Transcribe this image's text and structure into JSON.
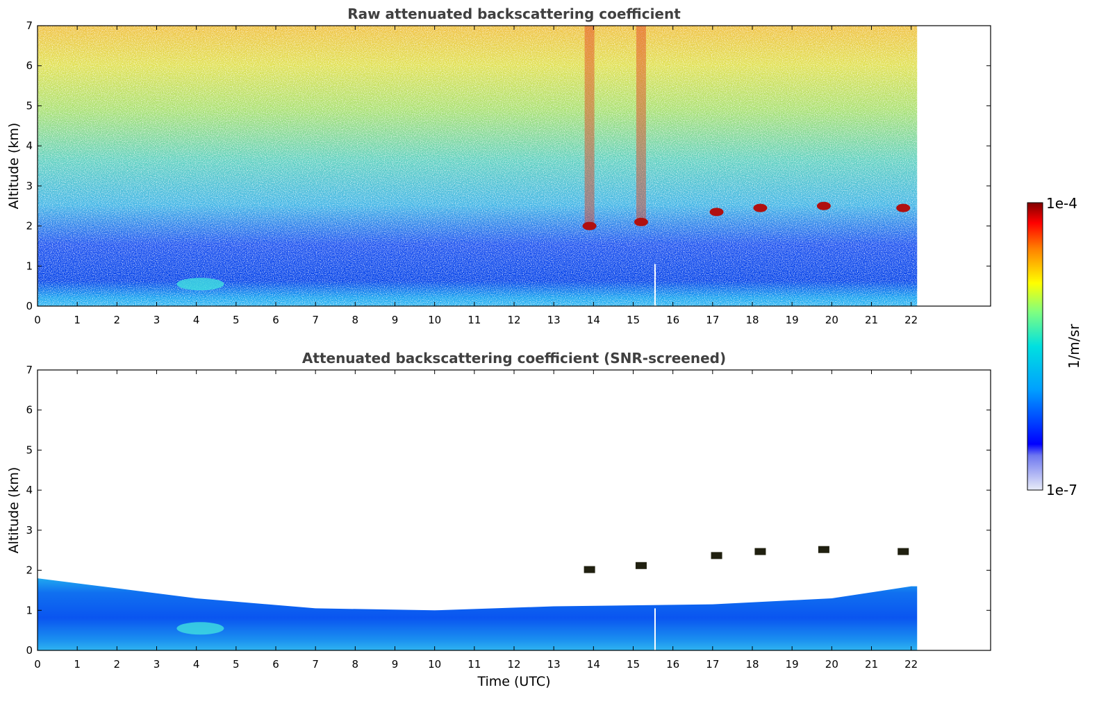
{
  "chart_data": [
    {
      "type": "heatmap",
      "title": "Raw attenuated backscattering coefficient",
      "xlabel": "",
      "ylabel": "Altitude (km)",
      "xlim": [
        0,
        24
      ],
      "ylim": [
        0,
        7
      ],
      "xticks": [
        "0",
        "1",
        "2",
        "3",
        "4",
        "5",
        "6",
        "7",
        "8",
        "9",
        "10",
        "11",
        "12",
        "13",
        "14",
        "15",
        "16",
        "17",
        "18",
        "19",
        "20",
        "21",
        "22"
      ],
      "yticks": [
        "0",
        "1",
        "2",
        "3",
        "4",
        "5",
        "6",
        "7"
      ],
      "data_extent_time": [
        0,
        22.15
      ],
      "screened": false,
      "features": {
        "boundary_layer_top_km": 1.0,
        "cloud_layer_altitudes_km": [
          {
            "time": 13.9,
            "altitude": 2.0
          },
          {
            "time": 15.2,
            "altitude": 2.1
          },
          {
            "time": 17.1,
            "altitude": 2.35
          },
          {
            "time": 18.2,
            "altitude": 2.45
          },
          {
            "time": 19.8,
            "altitude": 2.5
          },
          {
            "time": 21.8,
            "altitude": 2.45
          }
        ],
        "precipitation_streak_times": [
          13.9,
          15.2
        ]
      }
    },
    {
      "type": "heatmap",
      "title": "Attenuated backscattering coefficient (SNR-screened)",
      "xlabel": "Time (UTC)",
      "ylabel": "Altitude (km)",
      "xlim": [
        0,
        24
      ],
      "ylim": [
        0,
        7
      ],
      "xticks": [
        "0",
        "1",
        "2",
        "3",
        "4",
        "5",
        "6",
        "7",
        "8",
        "9",
        "10",
        "11",
        "12",
        "13",
        "14",
        "15",
        "16",
        "17",
        "18",
        "19",
        "20",
        "21",
        "22"
      ],
      "yticks": [
        "0",
        "1",
        "2",
        "3",
        "4",
        "5",
        "6",
        "7"
      ],
      "data_extent_time": [
        0,
        22.15
      ],
      "screened": true,
      "features": {
        "boundary_layer_top_km": [
          {
            "time": 0,
            "altitude": 1.8
          },
          {
            "time": 2,
            "altitude": 1.55
          },
          {
            "time": 4,
            "altitude": 1.3
          },
          {
            "time": 7,
            "altitude": 1.05
          },
          {
            "time": 10,
            "altitude": 1.0
          },
          {
            "time": 13,
            "altitude": 1.1
          },
          {
            "time": 17,
            "altitude": 1.15
          },
          {
            "time": 20,
            "altitude": 1.3
          },
          {
            "time": 22,
            "altitude": 1.6
          }
        ]
      }
    }
  ],
  "colorbar": {
    "max_label": "1e-4",
    "min_label": "1e-7",
    "unit_label": "1/m/sr",
    "colormap": "jet",
    "colors": [
      "#e8ecf8",
      "#0000ff",
      "#00a0ff",
      "#00e0e0",
      "#ffff00",
      "#ff8000",
      "#ff0000",
      "#800000"
    ]
  }
}
